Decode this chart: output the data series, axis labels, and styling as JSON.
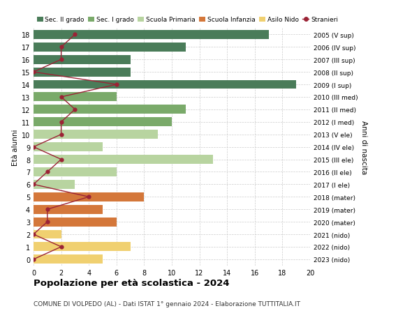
{
  "ages": [
    18,
    17,
    16,
    15,
    14,
    13,
    12,
    11,
    10,
    9,
    8,
    7,
    6,
    5,
    4,
    3,
    2,
    1,
    0
  ],
  "years_labels": [
    "2005 (V sup)",
    "2006 (IV sup)",
    "2007 (III sup)",
    "2008 (II sup)",
    "2009 (I sup)",
    "2010 (III med)",
    "2011 (II med)",
    "2012 (I med)",
    "2013 (V ele)",
    "2014 (IV ele)",
    "2015 (III ele)",
    "2016 (II ele)",
    "2017 (I ele)",
    "2018 (mater)",
    "2019 (mater)",
    "2020 (mater)",
    "2021 (nido)",
    "2022 (nido)",
    "2023 (nido)"
  ],
  "bar_values": [
    17,
    11,
    7,
    7,
    19,
    6,
    11,
    10,
    9,
    5,
    13,
    6,
    3,
    8,
    5,
    6,
    2,
    7,
    5
  ],
  "bar_colors": [
    "#4a7c59",
    "#4a7c59",
    "#4a7c59",
    "#4a7c59",
    "#4a7c59",
    "#7aaa6a",
    "#7aaa6a",
    "#7aaa6a",
    "#b8d4a0",
    "#b8d4a0",
    "#b8d4a0",
    "#b8d4a0",
    "#b8d4a0",
    "#d4773a",
    "#d4773a",
    "#d4773a",
    "#f0d070",
    "#f0d070",
    "#f0d070"
  ],
  "stranieri_values": [
    3,
    2,
    2,
    0,
    6,
    2,
    3,
    2,
    2,
    0,
    2,
    1,
    0,
    4,
    1,
    1,
    0,
    2,
    0
  ],
  "stranieri_color": "#9b2335",
  "legend_labels": [
    "Sec. II grado",
    "Sec. I grado",
    "Scuola Primaria",
    "Scuola Infanzia",
    "Asilo Nido",
    "Stranieri"
  ],
  "legend_colors": [
    "#4a7c59",
    "#7aaa6a",
    "#b8d4a0",
    "#d4773a",
    "#f0d070",
    "#9b2335"
  ],
  "ylabel_left": "Età alunni",
  "ylabel_right": "Anni di nascita",
  "title": "Popolazione per età scolastica - 2024",
  "subtitle": "COMUNE DI VOLPEDO (AL) - Dati ISTAT 1° gennaio 2024 - Elaborazione TUTTITALIA.IT",
  "xlim": [
    0,
    20
  ],
  "ylim": [
    -0.5,
    18.5
  ],
  "bg_color": "#ffffff",
  "grid_color": "#cccccc"
}
